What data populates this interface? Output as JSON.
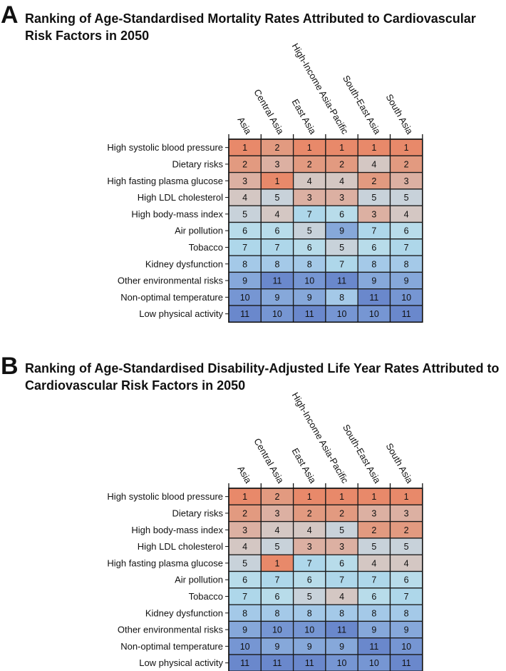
{
  "chart_data": [
    {
      "type": "heatmap",
      "panel_label": "A",
      "title": "Ranking of Age-Standardised Mortality Rates Attributed to Cardiovascular Risk Factors in 2050",
      "columns": [
        "Asia",
        "Central Asia",
        "East Asia",
        "High-Income Asia-Pacific",
        "South-East Asia",
        "South Asia"
      ],
      "rows": [
        "High systolic blood pressure",
        "Dietary risks",
        "High fasting plasma glucose",
        "High LDL cholesterol",
        "High body-mass index",
        "Air pollution",
        "Tobacco",
        "Kidney dysfunction",
        "Other environmental risks",
        "Non-optimal temperature",
        "Low physical activity"
      ],
      "values": [
        [
          1,
          2,
          1,
          1,
          1,
          1
        ],
        [
          2,
          3,
          2,
          2,
          4,
          2
        ],
        [
          3,
          1,
          4,
          4,
          2,
          3
        ],
        [
          4,
          5,
          3,
          3,
          5,
          5
        ],
        [
          5,
          4,
          7,
          6,
          3,
          4
        ],
        [
          6,
          6,
          5,
          9,
          7,
          6
        ],
        [
          7,
          7,
          6,
          5,
          6,
          7
        ],
        [
          8,
          8,
          8,
          7,
          8,
          8
        ],
        [
          9,
          11,
          10,
          11,
          9,
          9
        ],
        [
          10,
          9,
          9,
          8,
          11,
          10
        ],
        [
          11,
          10,
          11,
          10,
          10,
          11
        ]
      ]
    },
    {
      "type": "heatmap",
      "panel_label": "B",
      "title": "Ranking of Age-Standardised Disability-Adjusted Life Year Rates Attributed to Cardiovascular Risk Factors in 2050",
      "columns": [
        "Asia",
        "Central Asia",
        "East Asia",
        "High-Income Asia-Pacific",
        "South-East Asia",
        "South Asia"
      ],
      "rows": [
        "High systolic blood pressure",
        "Dietary risks",
        "High body-mass index",
        "High LDL cholesterol",
        "High fasting plasma glucose",
        "Air pollution",
        "Tobacco",
        "Kidney dysfunction",
        "Other environmental risks",
        "Non-optimal temperature",
        "Low physical activity"
      ],
      "values": [
        [
          1,
          2,
          1,
          1,
          1,
          1
        ],
        [
          2,
          3,
          2,
          2,
          3,
          3
        ],
        [
          3,
          4,
          4,
          5,
          2,
          2
        ],
        [
          4,
          5,
          3,
          3,
          5,
          5
        ],
        [
          5,
          1,
          7,
          6,
          4,
          4
        ],
        [
          6,
          7,
          6,
          7,
          7,
          6
        ],
        [
          7,
          6,
          5,
          4,
          6,
          7
        ],
        [
          8,
          8,
          8,
          8,
          8,
          8
        ],
        [
          9,
          10,
          10,
          11,
          9,
          9
        ],
        [
          10,
          9,
          9,
          9,
          11,
          10
        ],
        [
          11,
          11,
          11,
          10,
          10,
          11
        ]
      ]
    }
  ],
  "colors": {
    "rank_scale": [
      "#e8896a",
      "#e29a80",
      "#dcb0a2",
      "#d4c7c3",
      "#c8d2da",
      "#b8dcea",
      "#aed7ea",
      "#a4c9e8",
      "#86a8da",
      "#7696d3",
      "#6a88cc"
    ]
  }
}
